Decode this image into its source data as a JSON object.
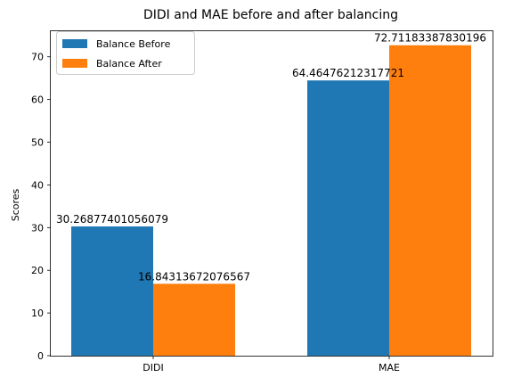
{
  "chart_data": {
    "type": "bar",
    "title": "DIDI and MAE before and after balancing",
    "xlabel": "",
    "ylabel": "Scores",
    "categories": [
      "DIDI",
      "MAE"
    ],
    "series": [
      {
        "name": "Balance Before",
        "color": "#1f77b4",
        "values": [
          30.26877401056079,
          64.46476212317721
        ],
        "labels": [
          "30.26877401056079",
          "64.46476212317721"
        ]
      },
      {
        "name": "Balance After",
        "color": "#ff7f0e",
        "values": [
          16.84313672076567,
          72.71183387830196
        ],
        "labels": [
          "16.84313672076567",
          "72.71183387830196"
        ]
      }
    ],
    "ylim": [
      0,
      76
    ],
    "yticks": [
      0,
      10,
      20,
      30,
      40,
      50,
      60,
      70
    ],
    "grid": false,
    "legend_position": "top-left"
  }
}
